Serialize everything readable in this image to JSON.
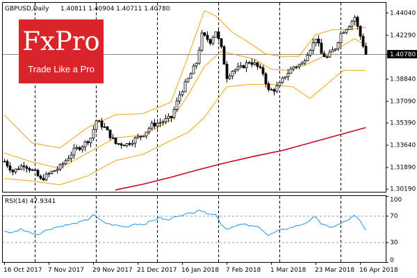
{
  "header": {
    "symbol": "GBPUSD,Daily",
    "ohlc": "1.40811 1.40904 1.40711 1.40780"
  },
  "logo": {
    "brand": "FxPro",
    "tagline": "Trade Like a Pro"
  },
  "colors": {
    "candle": "#000000",
    "bollinger": "#f0a30a",
    "ma": "#c8001e",
    "rsi": "#1e90ff",
    "price_line": "#808080"
  },
  "chart_data": [
    {
      "type": "candlestick",
      "ylim": [
        1.2995,
        1.4482
      ],
      "yticks": [
        "1.44040",
        "1.42290",
        "1.40780",
        "1.38840",
        "1.37090",
        "1.35390",
        "1.33640",
        "1.31890",
        "1.30190"
      ],
      "current_price": "1.40780",
      "xlabels": [
        "16 Oct 2017",
        "7 Nov 2017",
        "29 Nov 2017",
        "21 Dec 2017",
        "16 Jan 2018",
        "7 Feb 2018",
        "1 Mar 2018",
        "23 Mar 2018",
        "16 Apr 2018"
      ],
      "xlabel_bar_index": [
        0,
        16,
        32,
        48,
        64,
        80,
        96,
        112,
        128
      ],
      "vline_bar_index": [
        11,
        33,
        55,
        77,
        99,
        121
      ],
      "anchors": [
        [
          0,
          1.3235
        ],
        [
          3,
          1.3155
        ],
        [
          7,
          1.321
        ],
        [
          11,
          1.3145
        ],
        [
          13,
          1.309
        ],
        [
          17,
          1.315
        ],
        [
          20,
          1.319
        ],
        [
          25,
          1.332
        ],
        [
          28,
          1.336
        ],
        [
          31,
          1.342
        ],
        [
          33,
          1.3555
        ],
        [
          36,
          1.35
        ],
        [
          40,
          1.3375
        ],
        [
          44,
          1.337
        ],
        [
          47,
          1.341
        ],
        [
          50,
          1.345
        ],
        [
          53,
          1.352
        ],
        [
          57,
          1.355
        ],
        [
          60,
          1.358
        ],
        [
          63,
          1.376
        ],
        [
          66,
          1.388
        ],
        [
          69,
          1.401
        ],
        [
          71,
          1.423
        ],
        [
          74,
          1.418
        ],
        [
          76,
          1.426
        ],
        [
          78,
          1.412
        ],
        [
          80,
          1.39
        ],
        [
          82,
          1.395
        ],
        [
          85,
          1.397
        ],
        [
          88,
          1.402
        ],
        [
          90,
          1.4
        ],
        [
          93,
          1.393
        ],
        [
          95,
          1.379
        ],
        [
          97,
          1.38
        ],
        [
          99,
          1.384
        ],
        [
          101,
          1.391
        ],
        [
          104,
          1.398
        ],
        [
          107,
          1.4
        ],
        [
          109,
          1.409
        ],
        [
          111,
          1.416
        ],
        [
          112,
          1.421
        ],
        [
          114,
          1.408
        ],
        [
          116,
          1.405
        ],
        [
          119,
          1.413
        ],
        [
          121,
          1.424
        ],
        [
          124,
          1.431
        ],
        [
          126,
          1.437
        ],
        [
          127,
          1.429
        ],
        [
          129,
          1.415
        ],
        [
          130,
          1.4078
        ]
      ],
      "overlays": [
        {
          "name": "bollinger-upper",
          "points": [
            [
              0,
              1.36
            ],
            [
              10,
              1.338
            ],
            [
              20,
              1.334
            ],
            [
              30,
              1.35
            ],
            [
              40,
              1.36
            ],
            [
              50,
              1.361
            ],
            [
              60,
              1.37
            ],
            [
              66,
              1.405
            ],
            [
              72,
              1.442
            ],
            [
              76,
              1.438
            ],
            [
              82,
              1.425
            ],
            [
              88,
              1.417
            ],
            [
              94,
              1.408
            ],
            [
              100,
              1.406
            ],
            [
              106,
              1.406
            ],
            [
              112,
              1.423
            ],
            [
              118,
              1.427
            ],
            [
              124,
              1.427
            ],
            [
              130,
              1.429
            ]
          ]
        },
        {
          "name": "bollinger-middle",
          "points": [
            [
              0,
              1.33
            ],
            [
              10,
              1.323
            ],
            [
              20,
              1.318
            ],
            [
              30,
              1.33
            ],
            [
              40,
              1.342
            ],
            [
              50,
              1.344
            ],
            [
              60,
              1.356
            ],
            [
              66,
              1.375
            ],
            [
              72,
              1.398
            ],
            [
              78,
              1.41
            ],
            [
              84,
              1.407
            ],
            [
              90,
              1.404
            ],
            [
              96,
              1.396
            ],
            [
              102,
              1.395
            ],
            [
              108,
              1.399
            ],
            [
              114,
              1.405
            ],
            [
              120,
              1.412
            ],
            [
              126,
              1.42
            ],
            [
              130,
              1.415
            ]
          ]
        },
        {
          "name": "bollinger-lower",
          "points": [
            [
              0,
              1.31
            ],
            [
              10,
              1.308
            ],
            [
              20,
              1.305
            ],
            [
              30,
              1.312
            ],
            [
              40,
              1.324
            ],
            [
              50,
              1.329
            ],
            [
              60,
              1.34
            ],
            [
              66,
              1.346
            ],
            [
              72,
              1.358
            ],
            [
              76,
              1.37
            ],
            [
              80,
              1.382
            ],
            [
              88,
              1.384
            ],
            [
              96,
              1.384
            ],
            [
              104,
              1.382
            ],
            [
              110,
              1.373
            ],
            [
              116,
              1.384
            ],
            [
              122,
              1.395
            ],
            [
              127,
              1.395
            ],
            [
              130,
              1.395
            ]
          ]
        },
        {
          "name": "moving-average-200",
          "points": [
            [
              40,
              1.301
            ],
            [
              50,
              1.3055
            ],
            [
              60,
              1.311
            ],
            [
              70,
              1.317
            ],
            [
              80,
              1.3225
            ],
            [
              90,
              1.3275
            ],
            [
              100,
              1.332
            ],
            [
              110,
              1.338
            ],
            [
              120,
              1.344
            ],
            [
              130,
              1.35
            ]
          ]
        }
      ]
    },
    {
      "type": "line",
      "title": "RSI(14) 47.9341",
      "ylim": [
        0,
        100
      ],
      "yticks": [
        100,
        70,
        30,
        0
      ],
      "levels": [
        70,
        30
      ],
      "anchors": [
        [
          0,
          47
        ],
        [
          3,
          44
        ],
        [
          6,
          50
        ],
        [
          9,
          45
        ],
        [
          12,
          42
        ],
        [
          15,
          48
        ],
        [
          18,
          52
        ],
        [
          21,
          55
        ],
        [
          24,
          57
        ],
        [
          27,
          60
        ],
        [
          30,
          64
        ],
        [
          32,
          72
        ],
        [
          35,
          62
        ],
        [
          38,
          57
        ],
        [
          41,
          55
        ],
        [
          44,
          53
        ],
        [
          47,
          58
        ],
        [
          50,
          57
        ],
        [
          53,
          62
        ],
        [
          56,
          67
        ],
        [
          59,
          63
        ],
        [
          62,
          70
        ],
        [
          65,
          72
        ],
        [
          68,
          75
        ],
        [
          70,
          80
        ],
        [
          72,
          75
        ],
        [
          74,
          74
        ],
        [
          76,
          72
        ],
        [
          78,
          58
        ],
        [
          80,
          50
        ],
        [
          83,
          55
        ],
        [
          86,
          57
        ],
        [
          89,
          54
        ],
        [
          92,
          53
        ],
        [
          95,
          40
        ],
        [
          98,
          46
        ],
        [
          101,
          50
        ],
        [
          104,
          53
        ],
        [
          107,
          57
        ],
        [
          110,
          62
        ],
        [
          112,
          70
        ],
        [
          114,
          58
        ],
        [
          117,
          52
        ],
        [
          120,
          56
        ],
        [
          123,
          62
        ],
        [
          126,
          70
        ],
        [
          128,
          62
        ],
        [
          130,
          48
        ]
      ]
    }
  ]
}
